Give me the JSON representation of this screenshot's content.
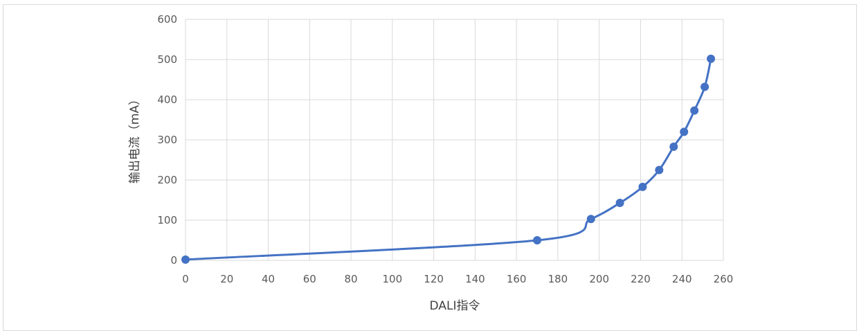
{
  "chart_data": {
    "type": "scatter",
    "title": "",
    "xlabel": "DALI指令",
    "ylabel": "输出电流（mA）",
    "xlim": [
      0,
      260
    ],
    "ylim": [
      0,
      600
    ],
    "xticks": [
      0,
      20,
      40,
      60,
      80,
      100,
      120,
      140,
      160,
      180,
      200,
      220,
      240,
      260
    ],
    "yticks": [
      0,
      100,
      200,
      300,
      400,
      500,
      600
    ],
    "grid": true,
    "legend": "none",
    "smooth": true,
    "series": [
      {
        "color": "#4472c4",
        "x": [
          0,
          170,
          196,
          210,
          221,
          229,
          236,
          241,
          246,
          251,
          254
        ],
        "y": [
          2,
          50,
          103,
          143,
          183,
          225,
          283,
          320,
          373,
          432,
          502
        ]
      }
    ]
  }
}
